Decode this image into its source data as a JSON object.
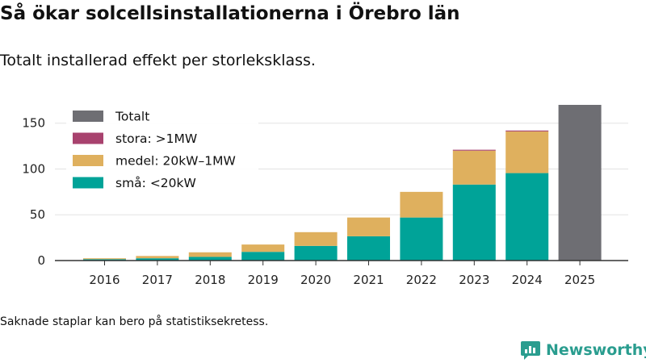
{
  "title": "Så ökar solcellsinstallationerna i Örebro län",
  "subtitle": "Totalt installerad effekt per storleksklass.",
  "footnote": "Saknade staplar kan bero på statistiksekretess.",
  "brand": {
    "name": "Newsworthy",
    "icon": "newsworthy-logo-icon",
    "color": "#2a9d8f"
  },
  "chart_data": {
    "type": "bar",
    "stacked": true,
    "title": "Så ökar solcellsinstallationerna i Örebro län",
    "subtitle": "Totalt installerad effekt per storleksklass.",
    "xlabel": "",
    "ylabel": "",
    "ylim": [
      0,
      170
    ],
    "yticks": [
      0,
      50,
      100,
      150
    ],
    "grid": true,
    "legend_position": "top-left",
    "categories": [
      "2016",
      "2017",
      "2018",
      "2019",
      "2020",
      "2021",
      "2022",
      "2023",
      "2024",
      "2025"
    ],
    "series": [
      {
        "name": "små: <20kW",
        "color": "#00a398",
        "values": [
          1.5,
          2.5,
          4,
          9.5,
          16,
          26.5,
          47,
          83,
          95.5,
          null
        ]
      },
      {
        "name": "medel: 20kW–1MW",
        "color": "#dfb05e",
        "values": [
          1,
          2.5,
          5,
          8,
          15,
          20.5,
          28,
          37,
          45.5,
          null
        ]
      },
      {
        "name": "stora: >1MW",
        "color": "#a8426e",
        "values": [
          0,
          0,
          0,
          0,
          0,
          0,
          0,
          1,
          1,
          null
        ]
      },
      {
        "name": "Totalt",
        "color": "#6e6e73",
        "values": [
          null,
          null,
          null,
          null,
          null,
          null,
          null,
          null,
          null,
          170
        ]
      }
    ],
    "legend_order": [
      "Totalt",
      "stora: >1MW",
      "medel: 20kW–1MW",
      "små: <20kW"
    ]
  }
}
